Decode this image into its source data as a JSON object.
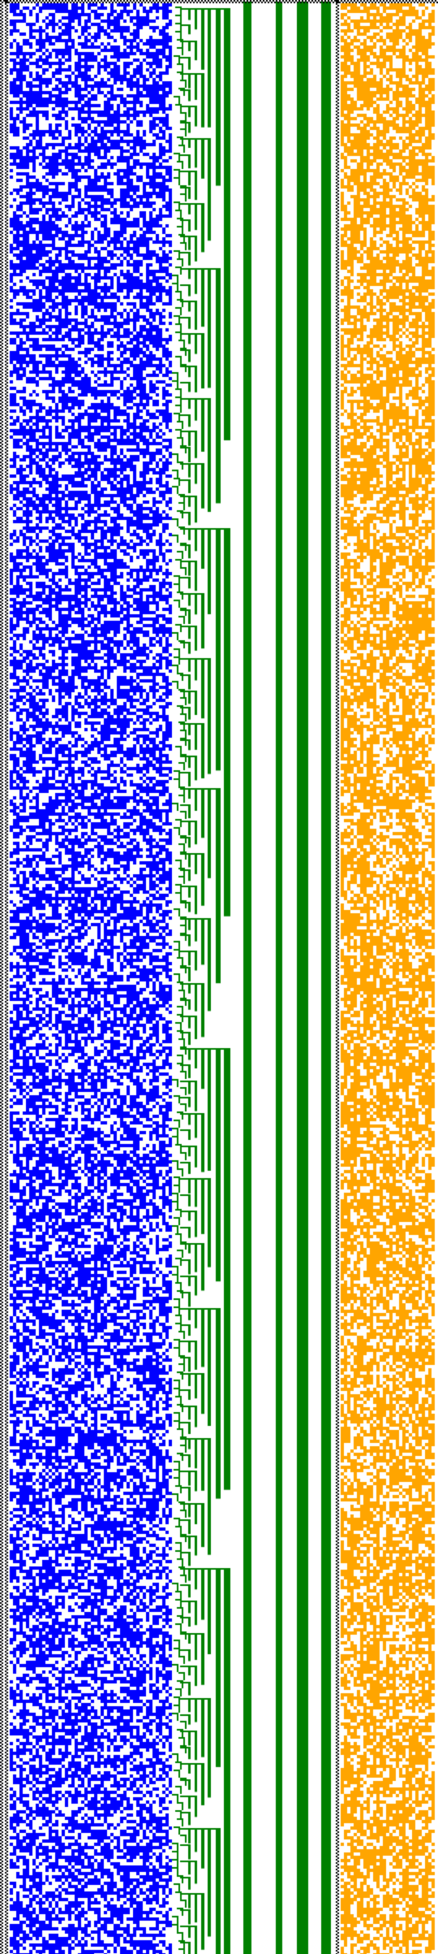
{
  "colors": {
    "background": "#ffffff",
    "separator": "#000000",
    "left_grid": "#0000ff",
    "tree_branches": "#008000",
    "right_grid": "#ffa500"
  },
  "panels": [
    {
      "name": "left-bit-grid",
      "fill_color": "#0000ff",
      "style": "dense random bit matrix"
    },
    {
      "name": "binary-tree-lines",
      "fill_color": "#008000",
      "style": "nested step / bracket lines"
    },
    {
      "name": "right-bit-grid",
      "fill_color": "#ffa500",
      "style": "dense random bit matrix"
    }
  ],
  "separators": [
    {
      "name": "left-border",
      "style": "dotted"
    },
    {
      "name": "top-border",
      "style": "dotted"
    },
    {
      "name": "middle-border",
      "style": "dotted"
    }
  ]
}
